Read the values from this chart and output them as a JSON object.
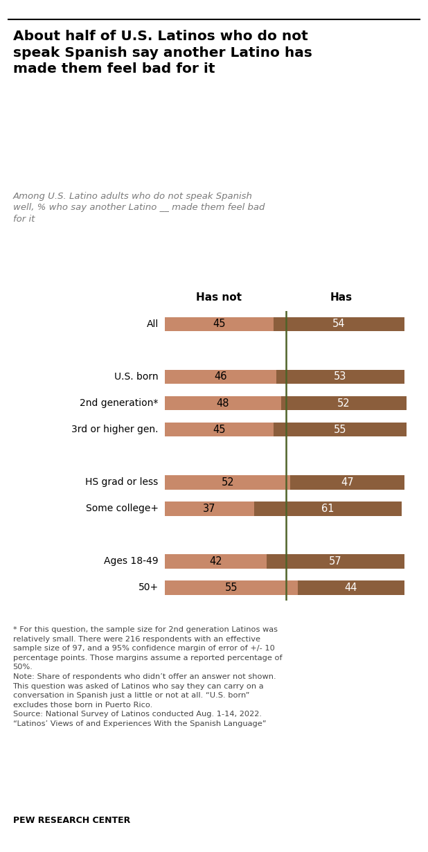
{
  "title": "About half of U.S. Latinos who do not\nspeak Spanish say another Latino has\nmade them feel bad for it",
  "subtitle": "Among U.S. Latino adults who do not speak Spanish\nwell, % who say another Latino __ made them feel bad\nfor it",
  "col_headers": [
    "Has not",
    "Has"
  ],
  "categories": [
    "All",
    null,
    "U.S. born",
    "2nd generation*",
    "3rd or higher gen.",
    null,
    "HS grad or less",
    "Some college+",
    null,
    "Ages 18-49",
    "50+"
  ],
  "has_not_values": [
    45,
    null,
    46,
    48,
    45,
    null,
    52,
    37,
    null,
    42,
    55
  ],
  "has_values": [
    54,
    null,
    53,
    52,
    55,
    null,
    47,
    61,
    null,
    57,
    44
  ],
  "color_has_not": "#C8896A",
  "color_has": "#8B5E3C",
  "color_line": "#4F6228",
  "bar_height": 0.55,
  "footnote_line1": "* For this question, the sample size for 2nd generation Latinos was\nrelatively small. There were 216 respondents with an effective\nsample size of 97, and a 95% confidence margin of error of +/- 10\npercentage points. Those margins assume a reported percentage of\n50%.",
  "footnote_line2": "Note: Share of respondents who didn’t offer an answer not shown.\nThis question was asked of Latinos who say they can carry on a\nconversation in Spanish just a little or not at all. “U.S. born”\nexcludes those born in Puerto Rico.",
  "footnote_line3": "Source: National Survey of Latinos conducted Aug. 1-14, 2022.\n“Latinos’ Views of and Experiences With the Spanish Language”",
  "source_label": "PEW RESEARCH CENTER",
  "background_color": "#FFFFFF",
  "text_color": "#000000",
  "subtitle_color": "#7A7A7A",
  "footnote_color": "#444444"
}
